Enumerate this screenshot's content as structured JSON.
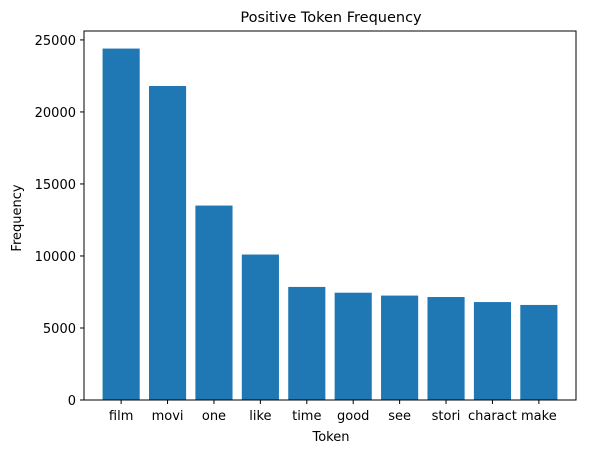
{
  "chart_data": {
    "type": "bar",
    "title": "Positive Token Frequency",
    "xlabel": "Token",
    "ylabel": "Frequency",
    "categories": [
      "film",
      "movi",
      "one",
      "like",
      "time",
      "good",
      "see",
      "stori",
      "charact",
      "make"
    ],
    "values": [
      24400,
      21800,
      13500,
      10100,
      7850,
      7450,
      7250,
      7150,
      6800,
      6600
    ],
    "ylim": [
      0,
      25620
    ],
    "yticks": [
      0,
      5000,
      10000,
      15000,
      20000,
      25000
    ],
    "ytick_labels": [
      "0",
      "5000",
      "10000",
      "15000",
      "20000",
      "25000"
    ],
    "bar_color": "#1f77b4",
    "grid": false,
    "legend": "none"
  }
}
